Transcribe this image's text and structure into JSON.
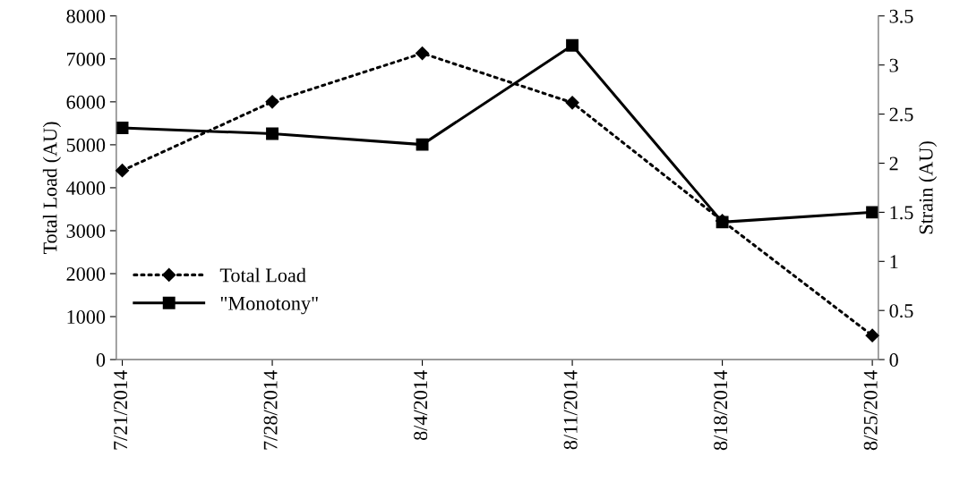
{
  "chart_data": {
    "type": "line",
    "categories": [
      "7/21/2014",
      "7/28/2014",
      "8/4/2014",
      "8/11/2014",
      "8/18/2014",
      "8/25/2014"
    ],
    "series": [
      {
        "name": "Total Load",
        "color": "#000000",
        "marker": "diamond",
        "line_style": "dotted",
        "values": [
          4400,
          6000,
          7130,
          5980,
          3230,
          560
        ]
      },
      {
        "name": "\"Monotony\"",
        "color": "#000000",
        "marker": "square",
        "line_style": "solid",
        "axis": "y2",
        "values": [
          2.36,
          2.3,
          2.19,
          3.2,
          1.4,
          1.5
        ]
      }
    ],
    "ylabel": "Total Load (AU)",
    "y2label": "Strain (AU)",
    "ylim": [
      0,
      8000
    ],
    "yticks": [
      0,
      1000,
      2000,
      3000,
      4000,
      5000,
      6000,
      7000,
      8000
    ],
    "y2lim": [
      0,
      3.5
    ],
    "y2ticks": [
      0,
      0.5,
      1,
      1.5,
      2,
      2.5,
      3,
      3.5
    ],
    "grid": false,
    "legend": "lower left"
  }
}
